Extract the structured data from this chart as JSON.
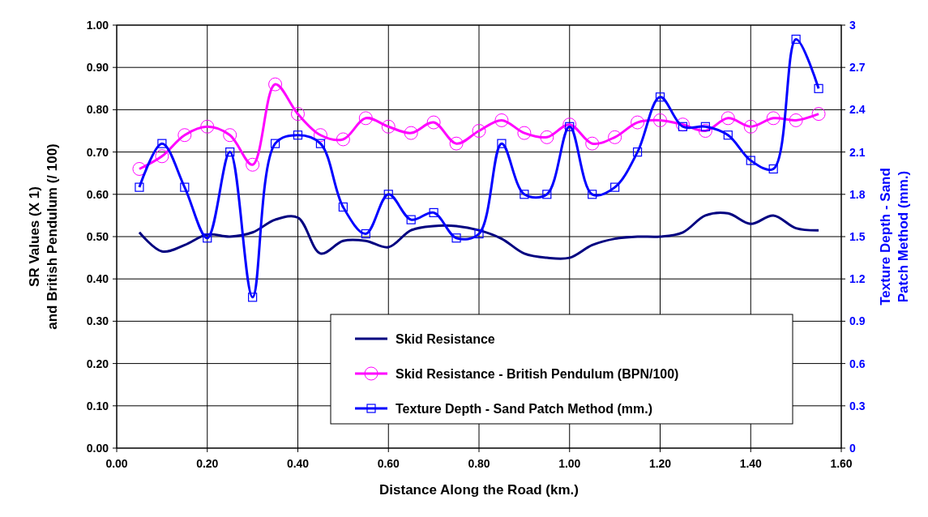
{
  "chart_data": {
    "type": "line",
    "xlabel": "Distance Along the Road (km.)",
    "ylabel": "SR Values (X 1)\nand British Pendulum (/ 100)",
    "y2label": "Texture Depth - Sand\nPatch Method (mm.)",
    "x": [
      0.05,
      0.1,
      0.15,
      0.2,
      0.25,
      0.3,
      0.35,
      0.4,
      0.45,
      0.5,
      0.55,
      0.6,
      0.65,
      0.7,
      0.75,
      0.8,
      0.85,
      0.9,
      0.95,
      1.0,
      1.05,
      1.1,
      1.15,
      1.2,
      1.25,
      1.3,
      1.35,
      1.4,
      1.45,
      1.5,
      1.55
    ],
    "xlim": [
      0,
      1.6
    ],
    "xticks": [
      {
        "value": 0,
        "label": "0.00"
      },
      {
        "value": 0.2,
        "label": "0.20"
      },
      {
        "value": 0.4,
        "label": "0.40"
      },
      {
        "value": 0.6,
        "label": "0.60"
      },
      {
        "value": 0.8,
        "label": "0.80"
      },
      {
        "value": 1,
        "label": "1.00"
      },
      {
        "value": 1.2,
        "label": "1.20"
      },
      {
        "value": 1.4,
        "label": "1.40"
      },
      {
        "value": 1.6,
        "label": "1.60"
      }
    ],
    "ylim": [
      0,
      1
    ],
    "yticks": [
      {
        "value": 0,
        "label": "0.00"
      },
      {
        "value": 0.1,
        "label": "0.10"
      },
      {
        "value": 0.2,
        "label": "0.20"
      },
      {
        "value": 0.3,
        "label": "0.30"
      },
      {
        "value": 0.4,
        "label": "0.40"
      },
      {
        "value": 0.5,
        "label": "0.50"
      },
      {
        "value": 0.6,
        "label": "0.60"
      },
      {
        "value": 0.7,
        "label": "0.70"
      },
      {
        "value": 0.8,
        "label": "0.80"
      },
      {
        "value": 0.9,
        "label": "0.90"
      },
      {
        "value": 1,
        "label": "1.00"
      }
    ],
    "y2lim": [
      0,
      3
    ],
    "y2ticks": [
      0,
      0.3,
      0.6,
      0.9,
      1.2,
      1.5,
      1.8,
      2.1,
      2.4,
      2.7,
      3
    ],
    "grid": true,
    "legend": "bottom right",
    "series": [
      {
        "name": "Skid Resistance",
        "color": "#000080",
        "marker": "none",
        "values": [
          0.51,
          0.465,
          0.48,
          0.505,
          0.5,
          0.51,
          0.54,
          0.545,
          0.46,
          0.49,
          0.49,
          0.475,
          0.515,
          0.525,
          0.525,
          0.515,
          0.495,
          0.46,
          0.45,
          0.45,
          0.48,
          0.495,
          0.5,
          0.5,
          0.51,
          0.55,
          0.555,
          0.53,
          0.55,
          0.52,
          0.515
        ]
      },
      {
        "name": "Skid Resistance - British Pendulum (BPN/100)",
        "color": "#ff00ff",
        "marker": "circle",
        "values": [
          0.66,
          0.69,
          0.74,
          0.76,
          0.74,
          0.67,
          0.86,
          0.79,
          0.74,
          0.73,
          0.78,
          0.76,
          0.745,
          0.77,
          0.72,
          0.75,
          0.775,
          0.745,
          0.735,
          0.765,
          0.72,
          0.735,
          0.77,
          0.775,
          0.765,
          0.75,
          0.78,
          0.76,
          0.78,
          0.775,
          0.79
        ]
      },
      {
        "name": "Texture Depth - Sand Patch Method (mm.)",
        "color": "#0000ff",
        "marker": "square",
        "axis": "y2",
        "values": [
          1.85,
          2.16,
          1.85,
          1.49,
          2.1,
          1.07,
          2.16,
          2.22,
          2.16,
          1.71,
          1.52,
          1.8,
          1.62,
          1.67,
          1.49,
          1.52,
          2.16,
          1.8,
          1.8,
          2.28,
          1.8,
          1.85,
          2.1,
          2.49,
          2.28,
          2.28,
          2.22,
          2.04,
          1.98,
          2.9,
          2.55
        ]
      }
    ]
  }
}
